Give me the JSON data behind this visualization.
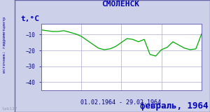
{
  "title": "СМОЛЕНСК",
  "ylabel": "t,°C",
  "xlabel_range": "01.02.1964 - 29.02.1964",
  "footer_left": "lab127",
  "footer_right": "февраль, 1964",
  "source_text": "источник: гидрометцентр",
  "ylim": [
    -45,
    -3
  ],
  "yticks": [
    -40,
    -30,
    -20,
    -10
  ],
  "background_color": "#ccd0e8",
  "plot_bg_color": "#ffffff",
  "line_color": "#00aa00",
  "title_color": "#0000bb",
  "footer_right_color": "#0000bb",
  "footer_left_color": "#9999bb",
  "tick_label_color": "#000088",
  "xlabel_color": "#000088",
  "grid_color": "#aaaacc",
  "border_color": "#6666aa",
  "days": [
    1,
    2,
    3,
    4,
    5,
    6,
    7,
    8,
    9,
    10,
    11,
    12,
    13,
    14,
    15,
    16,
    17,
    18,
    19,
    20,
    21,
    22,
    23,
    24,
    25,
    26,
    27,
    28,
    29
  ],
  "temps": [
    -7.0,
    -7.5,
    -8.0,
    -8.0,
    -7.5,
    -8.5,
    -9.5,
    -11.0,
    -13.5,
    -16.0,
    -18.5,
    -19.5,
    -19.0,
    -17.5,
    -15.0,
    -12.5,
    -13.0,
    -14.5,
    -13.0,
    -22.5,
    -23.5,
    -19.5,
    -18.0,
    -14.5,
    -16.5,
    -18.5,
    -19.5,
    -19.0,
    -9.5
  ]
}
